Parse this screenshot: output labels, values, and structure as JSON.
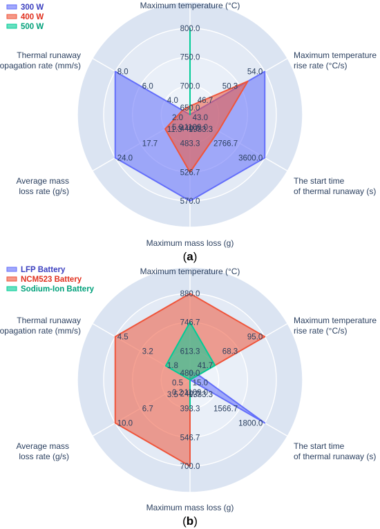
{
  "chart_data": [
    {
      "type": "radar",
      "panel_label": "a",
      "axes": [
        {
          "label_lines": [
            "Maximum temperature (°C)"
          ],
          "ticks": [
            "650.0",
            "700.0",
            "750.0",
            "800.0"
          ],
          "min": 650,
          "max": 800
        },
        {
          "label_lines": [
            "Maximum temperature",
            "rise rate (°C/s)"
          ],
          "ticks": [
            "43.0",
            "46.7",
            "50.3",
            "54.0"
          ],
          "min": 43,
          "max": 54
        },
        {
          "label_lines": [
            "The start time",
            "of thermal runaway (s)"
          ],
          "ticks": [
            "1100.0",
            "1933.3",
            "2766.7",
            "3600.0"
          ],
          "min": 1100,
          "max": 3600
        },
        {
          "label_lines": [
            "Maximum mass loss (g)"
          ],
          "ticks": [
            "440.0",
            "483.3",
            "526.7",
            "570.0"
          ],
          "min": 440,
          "max": 570
        },
        {
          "label_lines": [
            "Average mass",
            "loss rate (g/s)"
          ],
          "ticks": [
            "5.0",
            "11.3",
            "17.7",
            "24.0"
          ],
          "min": 5,
          "max": 24
        },
        {
          "label_lines": [
            "Thermal runaway",
            "propagation rate (mm/s)"
          ],
          "ticks": [
            "2.0",
            "4.0",
            "6.0",
            "8.0"
          ],
          "min": 2,
          "max": 8
        }
      ],
      "series": [
        {
          "name": "300 W",
          "color": "#636efa",
          "values": [
            650,
            54,
            3600,
            570,
            24,
            8
          ]
        },
        {
          "name": "400 W",
          "color": "#ef553b",
          "values": [
            665,
            51.5,
            2050,
            526.7,
            11.3,
            2.6
          ]
        },
        {
          "name": "500 W",
          "color": "#00cc96",
          "values": [
            800,
            43,
            1100,
            440,
            5,
            2
          ]
        }
      ]
    },
    {
      "type": "radar",
      "panel_label": "b",
      "axes": [
        {
          "label_lines": [
            "Maximum temperature (°C)"
          ],
          "ticks": [
            "480.0",
            "613.3",
            "746.7",
            "880.0"
          ],
          "min": 480,
          "max": 880
        },
        {
          "label_lines": [
            "Maximum temperature",
            "rise rate (°C/s)"
          ],
          "ticks": [
            "15.0",
            "41.7",
            "68.3",
            "95.0"
          ],
          "min": 15,
          "max": 95
        },
        {
          "label_lines": [
            "The start time",
            "of thermal runaway (s)"
          ],
          "ticks": [
            "1100.0",
            "1333.3",
            "1566.7",
            "1800.0"
          ],
          "min": 1100,
          "max": 1800
        },
        {
          "label_lines": [
            "Maximum mass loss (g)"
          ],
          "ticks": [
            "240.0",
            "393.3",
            "546.7",
            "700.0"
          ],
          "min": 240,
          "max": 700
        },
        {
          "label_lines": [
            "Average mass",
            "loss rate (g/s)"
          ],
          "ticks": [
            "0.2",
            "3.5",
            "6.7",
            "10.0"
          ],
          "min": 0.2,
          "max": 10
        },
        {
          "label_lines": [
            "Thermal runaway",
            "propagation rate (mm/s)"
          ],
          "ticks": [
            "0.5",
            "1.8",
            "3.2",
            "4.5"
          ],
          "min": 0.5,
          "max": 4.5
        }
      ],
      "series": [
        {
          "name": "LFP Battery",
          "color": "#636efa",
          "values": [
            520,
            24,
            1800,
            240,
            0.2,
            0.5
          ]
        },
        {
          "name": "NCM523 Battery",
          "color": "#ef553b",
          "values": [
            880,
            95,
            1100,
            700,
            10,
            4.5
          ]
        },
        {
          "name": "Sodium-Ion Battery",
          "color": "#00cc96",
          "values": [
            746.7,
            41.7,
            1100,
            393.3,
            0.2,
            1.8
          ]
        }
      ]
    }
  ]
}
